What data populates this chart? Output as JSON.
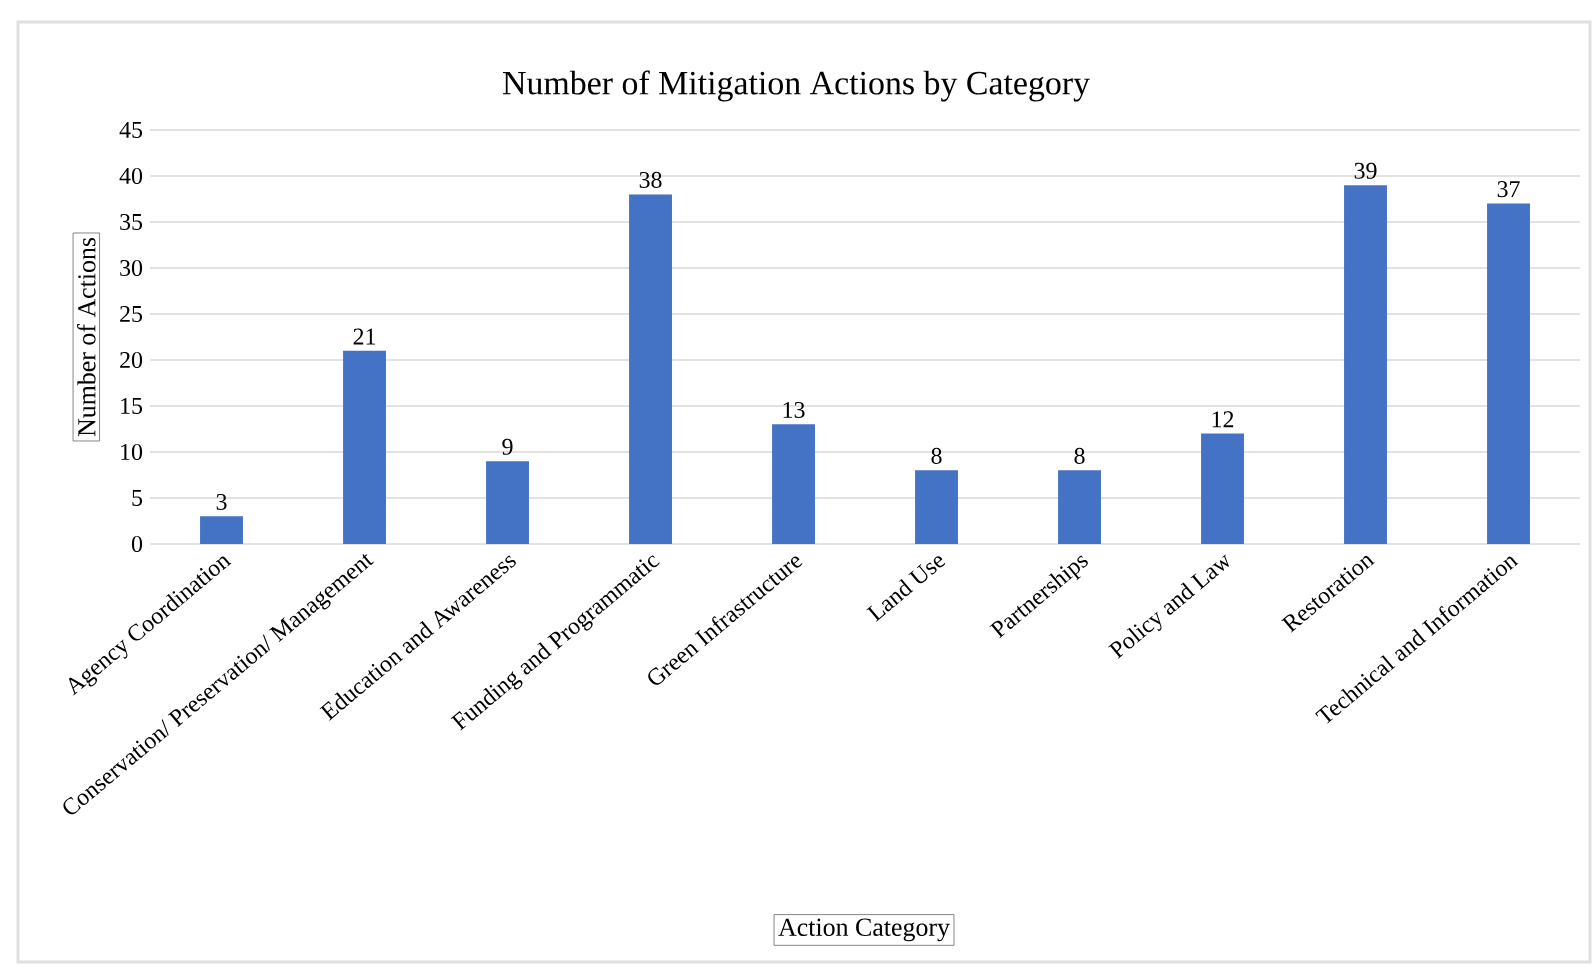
{
  "chart_data": {
    "type": "bar",
    "title": "Number of Mitigation Actions by Category",
    "xlabel": "Action Category",
    "ylabel": "Number of Actions",
    "categories": [
      "Agency Coordination",
      "Conservation/ Preservation/ Management",
      "Education and Awareness",
      "Funding and Programmatic",
      "Green Infrastructure",
      "Land Use",
      "Partnerships",
      "Policy and Law",
      "Restoration",
      "Technical and Information"
    ],
    "values": [
      3,
      21,
      9,
      38,
      13,
      8,
      8,
      12,
      39,
      37
    ],
    "color": "#4472c4",
    "ylim": [
      0,
      45
    ],
    "yticks": [
      0,
      5,
      10,
      15,
      20,
      25,
      30,
      35,
      40,
      45
    ],
    "grid": "y",
    "data_labels": true
  }
}
